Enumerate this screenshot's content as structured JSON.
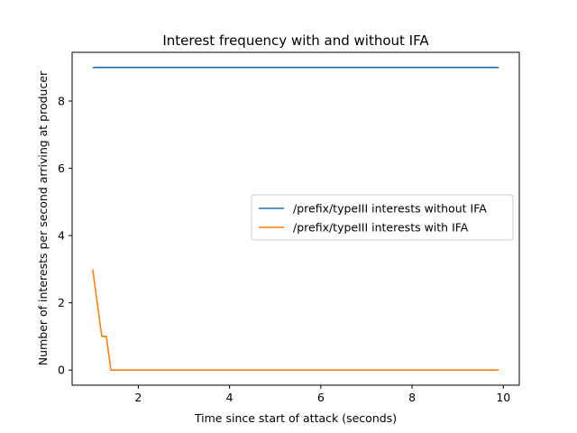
{
  "chart_data": {
    "type": "line",
    "title": "Interest frequency with and without IFA",
    "xlabel": "Time since start of attack (seconds)",
    "ylabel": "Number of interests per second arriving at producer",
    "xlim": [
      0.55,
      10.35
    ],
    "ylim": [
      -0.45,
      9.45
    ],
    "xticks": [
      2,
      4,
      6,
      8,
      10
    ],
    "yticks": [
      0,
      2,
      4,
      6,
      8
    ],
    "grid": false,
    "legend_position": "center-right",
    "series": [
      {
        "name": "/prefix/typeIII interests without IFA",
        "color": "#1f77b4",
        "x": [
          1.0,
          9.9
        ],
        "y": [
          9,
          9
        ]
      },
      {
        "name": "/prefix/typeIII interests with IFA",
        "color": "#ff7f0e",
        "x": [
          1.0,
          1.2,
          1.3,
          1.4,
          9.9
        ],
        "y": [
          3,
          1,
          1,
          0,
          0
        ]
      }
    ]
  }
}
